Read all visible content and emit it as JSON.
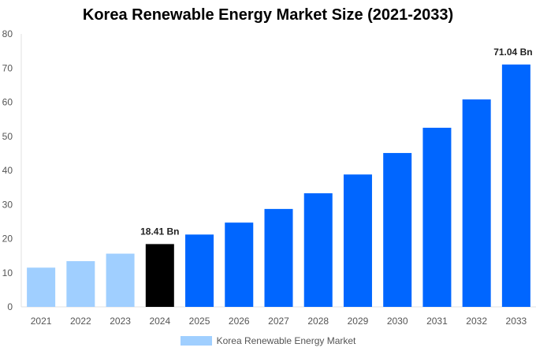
{
  "chart_data": {
    "type": "bar",
    "title": "Korea Renewable Energy Market Size (2021-2033)",
    "categories": [
      "2021",
      "2022",
      "2023",
      "2024",
      "2025",
      "2026",
      "2027",
      "2028",
      "2029",
      "2030",
      "2031",
      "2032",
      "2033"
    ],
    "series": [
      {
        "name": "Korea Renewable Energy Market",
        "values": [
          11.5,
          13.4,
          15.6,
          18.41,
          21.2,
          24.7,
          28.7,
          33.3,
          38.8,
          45.1,
          52.5,
          60.8,
          71.04
        ]
      }
    ],
    "bar_colors": [
      "#a0cfff",
      "#a0cfff",
      "#a0cfff",
      "#000000",
      "#0066ff",
      "#0066ff",
      "#0066ff",
      "#0066ff",
      "#0066ff",
      "#0066ff",
      "#0066ff",
      "#0066ff",
      "#0066ff"
    ],
    "data_labels": {
      "3": "18.41 Bn",
      "12": "71.04 Bn"
    },
    "ylim": [
      0,
      80
    ],
    "yticks": [
      0,
      10,
      20,
      30,
      40,
      50,
      60,
      70,
      80
    ],
    "xlabel": "",
    "ylabel": "",
    "grid": false,
    "legend": {
      "position": "bottom",
      "label": "Korea Renewable Energy Market",
      "color": "#a0cfff"
    }
  }
}
